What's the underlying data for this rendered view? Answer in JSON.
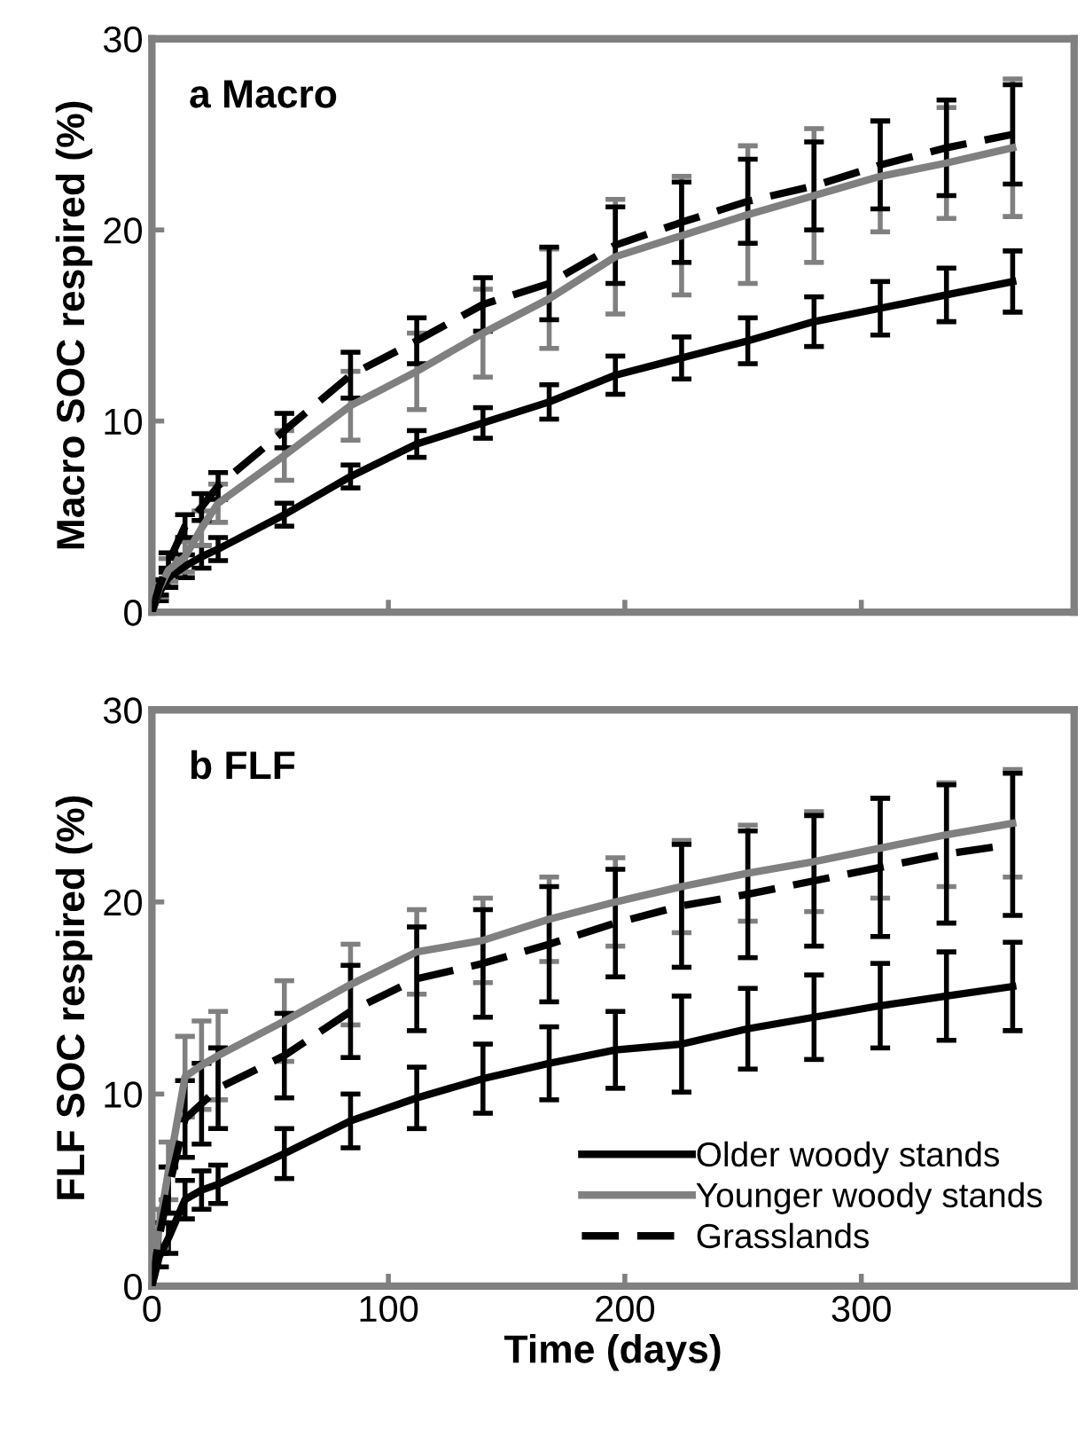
{
  "chart_data": [
    {
      "type": "line",
      "title": "a Macro",
      "ylabel": "Macro SOC respired (%)",
      "x": [
        0,
        3,
        7,
        14,
        21,
        28,
        56,
        84,
        112,
        140,
        168,
        196,
        224,
        252,
        280,
        308,
        336,
        364
      ],
      "xlim": [
        0,
        390
      ],
      "xticks": [
        {
          "value": 0,
          "label": null
        },
        {
          "value": 100,
          "label": null
        },
        {
          "value": 200,
          "label": null
        },
        {
          "value": 300,
          "label": null
        }
      ],
      "ylim": [
        0,
        30
      ],
      "yticks": [
        0,
        10,
        20,
        30
      ],
      "tick_labels": "y",
      "legend": false,
      "grid": false,
      "marker": "none",
      "series": [
        {
          "color": "#000000",
          "line_style": "solid",
          "values": [
            0,
            1.0,
            1.8,
            2.4,
            2.9,
            3.3,
            5.1,
            7.1,
            8.8,
            9.9,
            11.0,
            12.4,
            13.3,
            14.2,
            15.2,
            15.9,
            16.6,
            17.3
          ],
          "errors": [
            0,
            0.4,
            0.5,
            0.6,
            0.6,
            0.6,
            0.6,
            0.6,
            0.7,
            0.8,
            0.9,
            1.0,
            1.1,
            1.2,
            1.3,
            1.4,
            1.4,
            1.6
          ]
        },
        {
          "color": "#808080",
          "line_style": "solid",
          "values": [
            0,
            1.2,
            2.2,
            2.9,
            4.4,
            5.7,
            8.2,
            10.8,
            12.6,
            14.6,
            16.4,
            18.6,
            19.7,
            20.8,
            21.8,
            22.8,
            23.5,
            24.3
          ],
          "errors": [
            0,
            0.4,
            0.6,
            0.8,
            0.9,
            1.0,
            1.3,
            1.8,
            2.0,
            2.3,
            2.6,
            3.0,
            3.1,
            3.6,
            3.5,
            2.9,
            2.9,
            3.6
          ]
        },
        {
          "color": "#000000",
          "line_style": "dashed",
          "values": [
            0,
            1.3,
            2.6,
            4.5,
            5.5,
            6.6,
            9.5,
            12.4,
            14.2,
            16.1,
            17.2,
            19.2,
            20.4,
            21.5,
            22.3,
            23.4,
            24.3,
            25.0
          ],
          "errors": [
            0,
            0.4,
            0.5,
            0.6,
            0.7,
            0.7,
            0.9,
            1.2,
            1.2,
            1.4,
            1.9,
            2.0,
            2.1,
            2.2,
            2.3,
            2.3,
            2.5,
            2.6
          ]
        }
      ]
    },
    {
      "type": "line",
      "title": "b FLF",
      "ylabel": "FLF SOC respired (%)",
      "xlabel": "Time (days)",
      "x": [
        0,
        3,
        7,
        14,
        21,
        28,
        56,
        84,
        112,
        140,
        168,
        196,
        224,
        252,
        280,
        308,
        336,
        364
      ],
      "xlim": [
        0,
        390
      ],
      "xticks": [
        0,
        100,
        200,
        300
      ],
      "ylim": [
        0,
        30
      ],
      "yticks": [
        0,
        10,
        20,
        30
      ],
      "legend": "bottom right",
      "grid": false,
      "marker": "none",
      "series": [
        {
          "name": "Older woody stands",
          "color": "#000000",
          "line_style": "solid",
          "values": [
            0,
            1.5,
            2.5,
            4.5,
            5.0,
            5.3,
            6.9,
            8.6,
            9.8,
            10.8,
            11.6,
            12.3,
            12.6,
            13.4,
            14.0,
            14.6,
            15.1,
            15.6
          ],
          "errors": [
            0,
            0.5,
            0.8,
            1.0,
            1.0,
            1.0,
            1.3,
            1.4,
            1.6,
            1.8,
            1.9,
            2.0,
            2.5,
            2.1,
            2.2,
            2.2,
            2.3,
            2.3
          ]
        },
        {
          "name": "Younger woody stands",
          "color": "#808080",
          "line_style": "solid",
          "values": [
            0,
            3.0,
            6.0,
            10.9,
            11.5,
            12.0,
            13.8,
            15.7,
            17.4,
            18.0,
            19.1,
            20.0,
            20.8,
            21.5,
            22.1,
            22.8,
            23.5,
            24.1
          ],
          "errors": [
            0,
            1.0,
            1.5,
            2.1,
            2.3,
            2.3,
            2.1,
            2.1,
            2.2,
            2.2,
            2.2,
            2.3,
            2.4,
            2.5,
            2.6,
            2.6,
            2.7,
            2.8
          ]
        },
        {
          "name": "Grasslands",
          "color": "#000000",
          "line_style": "dashed",
          "values": [
            0,
            2.5,
            5.0,
            8.7,
            9.5,
            10.3,
            12.0,
            14.3,
            16.0,
            16.8,
            17.8,
            18.9,
            19.8,
            20.4,
            21.1,
            21.8,
            22.5,
            23.0
          ],
          "errors": [
            0,
            0.8,
            1.2,
            2.0,
            2.1,
            2.1,
            2.2,
            2.4,
            2.7,
            2.8,
            3.0,
            2.8,
            3.2,
            3.3,
            3.4,
            3.6,
            3.6,
            3.7
          ]
        }
      ]
    }
  ]
}
